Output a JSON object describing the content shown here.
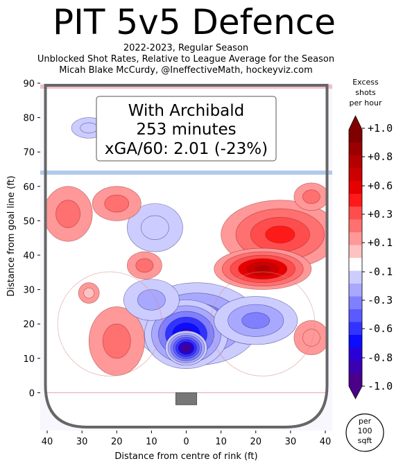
{
  "title": "PIT 5v5 Defence",
  "subtitle_lines": [
    "2022-2023, Regular Season",
    "Unblocked Shot Rates, Relative to League Average for the Season",
    "Micah Blake McCurdy, @IneffectiveMath, hockeyviz.com"
  ],
  "annotation": {
    "line1": "With Archibald",
    "line2": "253 minutes",
    "line3": "xGA/60: 2.01 (-23%)"
  },
  "colorbar": {
    "title_lines": [
      "Excess",
      "shots",
      "per hour"
    ],
    "tick_labels": [
      "+1.0",
      "+0.8",
      "+0.6",
      "+0.3",
      "+0.1",
      "-0.1",
      "-0.3",
      "-0.6",
      "-0.8",
      "-1.0"
    ],
    "colors": [
      "#800000",
      "#9a0000",
      "#b40000",
      "#cc0000",
      "#e60000",
      "#ff1a1a",
      "#ff4d4d",
      "#ff7070",
      "#ff9898",
      "#ffc2c2",
      "#ffffff",
      "#ccccff",
      "#a8a8ff",
      "#8080ff",
      "#5a5aff",
      "#3333ff",
      "#0c0cff",
      "#2a00d8",
      "#3c00b0",
      "#4a0088"
    ],
    "unit_lines": [
      "per",
      "100",
      "sqft"
    ]
  },
  "chart_data": {
    "type": "heatmap",
    "title": "PIT 5v5 Defence",
    "xlabel": "Distance from centre of rink (ft)",
    "ylabel": "Distance from goal line (ft)",
    "xlim": [
      42,
      -42
    ],
    "ylim": [
      -11,
      90
    ],
    "x_ticks": [
      40,
      30,
      20,
      10,
      0,
      10,
      20,
      30,
      40
    ],
    "x_tick_values": [
      40,
      30,
      20,
      10,
      0,
      -10,
      -20,
      -30,
      -40
    ],
    "y_ticks": [
      0,
      10,
      20,
      30,
      40,
      50,
      60,
      70,
      80,
      90
    ],
    "blue_line_ft": 64,
    "red_line_ft": 89,
    "color_range": [
      -1.0,
      1.0
    ],
    "blobs": [
      {
        "x": 0,
        "y": 13,
        "value": -1.0,
        "rx": 6,
        "ry": 5
      },
      {
        "x": 0,
        "y": 17,
        "value": -0.8,
        "rx": 12,
        "ry": 10
      },
      {
        "x": -3,
        "y": 20,
        "value": -0.5,
        "rx": 18,
        "ry": 12
      },
      {
        "x": -20,
        "y": 21,
        "value": -0.35,
        "rx": 12,
        "ry": 7
      },
      {
        "x": 10,
        "y": 27,
        "value": -0.3,
        "rx": 8,
        "ry": 6
      },
      {
        "x": -22,
        "y": 36,
        "value": 0.8,
        "rx": 14,
        "ry": 6
      },
      {
        "x": -27,
        "y": 46,
        "value": 0.5,
        "rx": 17,
        "ry": 10
      },
      {
        "x": -36,
        "y": 57,
        "value": 0.3,
        "rx": 5,
        "ry": 4
      },
      {
        "x": 34,
        "y": 52,
        "value": 0.3,
        "rx": 7,
        "ry": 8
      },
      {
        "x": 20,
        "y": 55,
        "value": 0.25,
        "rx": 7,
        "ry": 5
      },
      {
        "x": 12,
        "y": 37,
        "value": 0.3,
        "rx": 5,
        "ry": 4
      },
      {
        "x": 20,
        "y": 15,
        "value": 0.3,
        "rx": 8,
        "ry": 10
      },
      {
        "x": -36,
        "y": 16,
        "value": 0.2,
        "rx": 5,
        "ry": 5
      },
      {
        "x": 28,
        "y": 29,
        "value": 0.1,
        "rx": 3,
        "ry": 3
      },
      {
        "x": 9,
        "y": 48,
        "value": -0.15,
        "rx": 8,
        "ry": 7
      },
      {
        "x": 28,
        "y": 77,
        "value": -0.15,
        "rx": 5,
        "ry": 3
      }
    ]
  }
}
